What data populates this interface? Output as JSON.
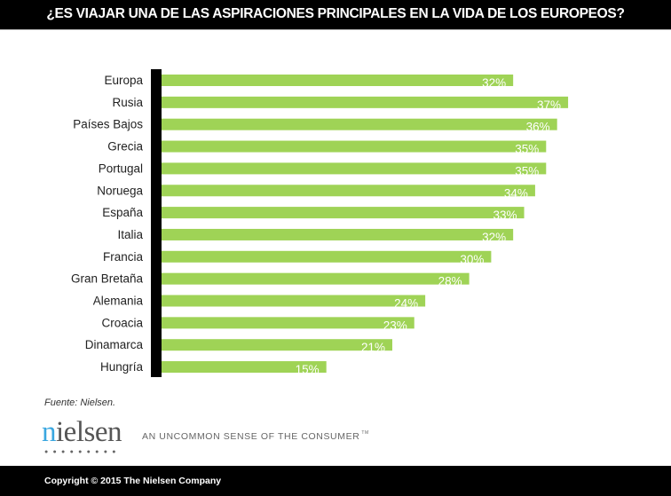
{
  "title": "¿ES VIAJAR UNA DE LAS ASPIRACIONES PRINCIPALES EN LA VIDA DE LOS EUROPEOS?",
  "chart_data": {
    "type": "bar",
    "orientation": "horizontal",
    "categories": [
      "Europa",
      "Rusia",
      "Países Bajos",
      "Grecia",
      "Portugal",
      "Noruega",
      "España",
      "Italia",
      "Francia",
      "Gran Bretaña",
      "Alemania",
      "Croacia",
      "Dinamarca",
      "Hungría"
    ],
    "values": [
      32,
      37,
      36,
      35,
      35,
      34,
      33,
      32,
      30,
      28,
      24,
      23,
      21,
      15
    ],
    "labels": [
      "32%",
      "37%",
      "36%",
      "35%",
      "35%",
      "34%",
      "33%",
      "32%",
      "30%",
      "28%",
      "24%",
      "23%",
      "21%",
      "15%"
    ],
    "unit": "%",
    "xlim": [
      0,
      40
    ],
    "grid": false,
    "bar_color": "#9fd356",
    "axis_color": "#000000"
  },
  "source": "Fuente: Nielsen.",
  "logo": {
    "text": "nielsen",
    "tagline": "AN UNCOMMON SENSE OF THE CONSUMER",
    "tm": "TM",
    "accent": "#3aa7e0"
  },
  "footer": {
    "copyright": "Copyright © 2015 The Nielsen Company"
  }
}
